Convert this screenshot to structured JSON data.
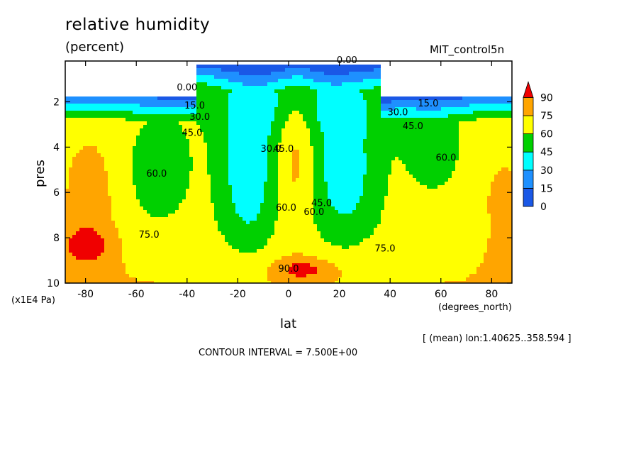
{
  "chart_data": {
    "type": "contour",
    "title": "relative humidity",
    "subtitle": "(percent)",
    "dataset_label": "MIT_control5n",
    "xlabel": "lat",
    "x_units": "(degrees_north)",
    "ylabel": "pres",
    "y_units": "(x1E4 Pa)",
    "xlim": [
      -88,
      88
    ],
    "ylim": [
      10,
      0.2
    ],
    "x_ticks": [
      -80,
      -60,
      -40,
      -20,
      0,
      20,
      40,
      60,
      80
    ],
    "y_ticks": [
      2,
      4,
      6,
      8,
      10
    ],
    "averaging_note": "[ (mean) lon:1.40625..358.594 ]",
    "contour_interval_text": "CONTOUR INTERVAL = 7.500E+00",
    "colorbar": {
      "levels": [
        0,
        15,
        30,
        45,
        60,
        75,
        90
      ],
      "colors": [
        "#1a58e6",
        "#1e90ff",
        "#00ffff",
        "#00d000",
        "#ffff00",
        "#ffa500",
        "#f00000"
      ]
    },
    "contour_labels": [
      {
        "text": "0.00",
        "x": -40,
        "y": 1.5
      },
      {
        "text": "0.00",
        "x": 23,
        "y": 0.3
      },
      {
        "text": "15.0",
        "x": -37,
        "y": 2.3
      },
      {
        "text": "15.0",
        "x": 55,
        "y": 2.2
      },
      {
        "text": "30.0",
        "x": -35,
        "y": 2.8
      },
      {
        "text": "30.0",
        "x": 43,
        "y": 2.6
      },
      {
        "text": "30.0",
        "x": -7,
        "y": 4.2
      },
      {
        "text": "45.0",
        "x": -38,
        "y": 3.5
      },
      {
        "text": "45.0",
        "x": 49,
        "y": 3.2
      },
      {
        "text": "45.0",
        "x": -2,
        "y": 4.2
      },
      {
        "text": "45.0",
        "x": 13,
        "y": 6.6
      },
      {
        "text": "60.0",
        "x": -52,
        "y": 5.3
      },
      {
        "text": "60.0",
        "x": 62,
        "y": 4.6
      },
      {
        "text": "60.0",
        "x": -1,
        "y": 6.8
      },
      {
        "text": "60.0",
        "x": 10,
        "y": 7.0
      },
      {
        "text": "75.0",
        "x": -55,
        "y": 8.0
      },
      {
        "text": "75.0",
        "x": 38,
        "y": 8.6
      },
      {
        "text": "90.0",
        "x": 0,
        "y": 9.5
      }
    ]
  }
}
